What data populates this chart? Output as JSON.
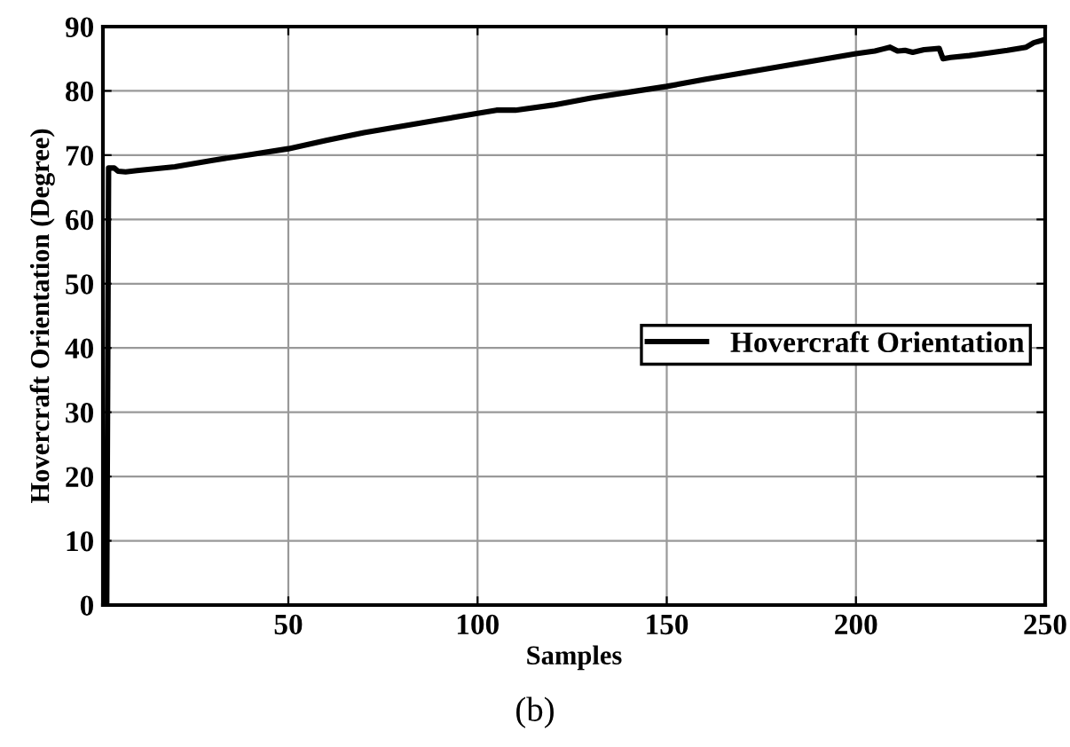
{
  "chart_data": {
    "type": "line",
    "xlabel": "Samples",
    "ylabel": "Hovercraft Orientation (Degree)",
    "annotations": [
      "(b)"
    ],
    "xlim": [
      1,
      250
    ],
    "xticks": [
      50,
      100,
      150,
      200,
      250
    ],
    "ylim": [
      0,
      90
    ],
    "yticks": [
      0,
      10,
      20,
      30,
      40,
      50,
      60,
      70,
      80,
      90
    ],
    "grid": true,
    "legend": "right",
    "series": [
      {
        "name": "Hovercraft Orientation",
        "color": "#000000",
        "x": [
          1,
          2,
          2.5,
          3,
          4,
          5,
          7,
          10,
          20,
          30,
          40,
          50,
          60,
          70,
          80,
          90,
          100,
          105,
          110,
          120,
          130,
          140,
          150,
          160,
          170,
          180,
          190,
          200,
          205,
          207,
          209,
          211,
          213,
          215,
          218,
          222,
          223,
          225,
          230,
          235,
          240,
          245,
          247,
          250
        ],
        "values": [
          0,
          0,
          68,
          68,
          68,
          67.5,
          67.4,
          67.6,
          68.2,
          69.2,
          70.1,
          71,
          72.3,
          73.5,
          74.5,
          75.5,
          76.5,
          77,
          77,
          77.8,
          78.9,
          79.8,
          80.7,
          81.8,
          82.8,
          83.8,
          84.8,
          85.8,
          86.2,
          86.5,
          86.8,
          86.2,
          86.3,
          86,
          86.4,
          86.6,
          85,
          85.2,
          85.5,
          85.9,
          86.3,
          86.8,
          87.5,
          88
        ]
      }
    ]
  }
}
